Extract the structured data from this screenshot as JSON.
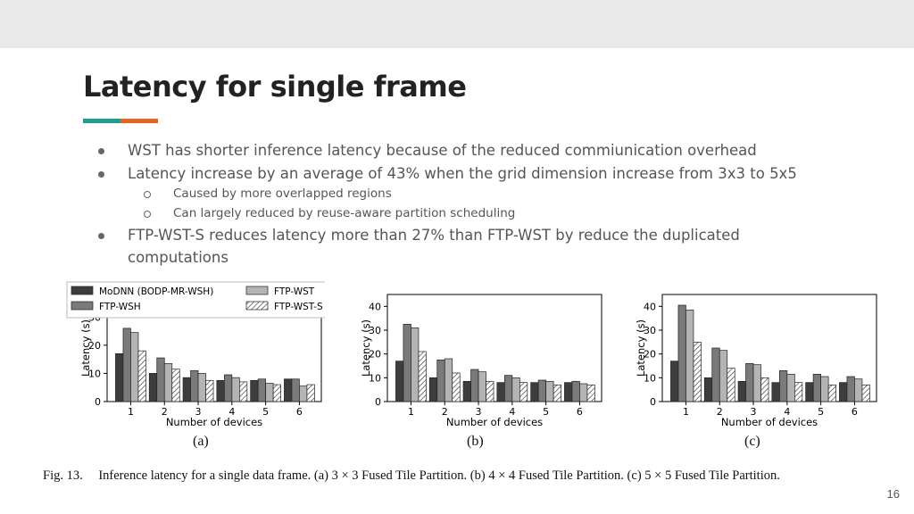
{
  "slide": {
    "title": "Latency for single frame",
    "accent_colors": [
      "#1f9e92",
      "#e8641f"
    ],
    "page_number": "16"
  },
  "bullets": [
    {
      "level": 1,
      "text": "WST has shorter inference latency because of the reduced commiunication overhead"
    },
    {
      "level": 1,
      "text": "Latency increase by an average of 43% when the grid dimension increase from 3x3 to 5x5"
    },
    {
      "level": 2,
      "text": "Caused by more overlapped regions"
    },
    {
      "level": 2,
      "text": "Can largely reduced by reuse-aware partition scheduling"
    },
    {
      "level": 1,
      "text": "FTP-WST-S reduces latency more than 27% than FTP-WST by reduce the duplicated"
    },
    {
      "level": 1,
      "text": "computations"
    }
  ],
  "figure": {
    "caption_label": "Fig. 13.",
    "caption_text": "Inference latency for a single data frame. (a) 3 × 3 Fused Tile Partition. (b) 4 × 4 Fused Tile Partition. (c) 5 × 5 Fused Tile Partition.",
    "sub_labels": [
      "(a)",
      "(b)",
      "(c)"
    ]
  },
  "chart_data": [
    {
      "type": "bar",
      "title": "",
      "xlabel": "Number of devices",
      "ylabel": "Latency (s)",
      "ylim": [
        0,
        38
      ],
      "yticks": [
        0,
        10,
        20,
        30
      ],
      "categories": [
        "1",
        "2",
        "3",
        "4",
        "5",
        "6"
      ],
      "legend": [
        "MoDNN (BODP-MR-WSH)",
        "FTP-WSH",
        "FTP-WST",
        "FTP-WST-S"
      ],
      "series": [
        {
          "name": "MoDNN (BODP-MR-WSH)",
          "color": "#3d3d3d",
          "values": [
            17,
            10,
            8.5,
            7.5,
            7.5,
            8
          ]
        },
        {
          "name": "FTP-WSH",
          "color": "#7a7a7a",
          "values": [
            26,
            15.5,
            11,
            9.5,
            8,
            8
          ]
        },
        {
          "name": "FTP-WST",
          "color": "#b4b4b4",
          "values": [
            24.5,
            13.5,
            10,
            8.5,
            6.5,
            5.5
          ]
        },
        {
          "name": "FTP-WST-S",
          "color": "hatch",
          "values": [
            18,
            11.5,
            7.5,
            7,
            6,
            6
          ]
        }
      ]
    },
    {
      "type": "bar",
      "title": "",
      "xlabel": "Number of devices",
      "ylabel": "Latency (s)",
      "ylim": [
        0,
        45
      ],
      "yticks": [
        0,
        10,
        20,
        30,
        40
      ],
      "categories": [
        "1",
        "2",
        "3",
        "4",
        "5",
        "6"
      ],
      "series": [
        {
          "name": "MoDNN (BODP-MR-WSH)",
          "color": "#3d3d3d",
          "values": [
            17,
            10,
            8.5,
            8,
            8,
            8
          ]
        },
        {
          "name": "FTP-WSH",
          "color": "#7a7a7a",
          "values": [
            32.5,
            17.5,
            13.5,
            11,
            9,
            8.5
          ]
        },
        {
          "name": "FTP-WST",
          "color": "#b4b4b4",
          "values": [
            31,
            18,
            12.5,
            10,
            8.5,
            7.5
          ]
        },
        {
          "name": "FTP-WST-S",
          "color": "hatch",
          "values": [
            21,
            12,
            8.5,
            8,
            7,
            7
          ]
        }
      ]
    },
    {
      "type": "bar",
      "title": "",
      "xlabel": "Number of devices",
      "ylabel": "Latency (s)",
      "ylim": [
        0,
        45
      ],
      "yticks": [
        0,
        10,
        20,
        30,
        40
      ],
      "categories": [
        "1",
        "2",
        "3",
        "4",
        "5",
        "6"
      ],
      "series": [
        {
          "name": "MoDNN (BODP-MR-WSH)",
          "color": "#3d3d3d",
          "values": [
            17,
            10,
            8.5,
            8,
            8,
            8
          ]
        },
        {
          "name": "FTP-WSH",
          "color": "#7a7a7a",
          "values": [
            40.5,
            22.5,
            16,
            13,
            11.5,
            10.5
          ]
        },
        {
          "name": "FTP-WST",
          "color": "#b4b4b4",
          "values": [
            38.5,
            21.5,
            15.5,
            11.5,
            10.5,
            9.5
          ]
        },
        {
          "name": "FTP-WST-S",
          "color": "hatch",
          "values": [
            25,
            14,
            10,
            8,
            7,
            7
          ]
        }
      ]
    }
  ]
}
